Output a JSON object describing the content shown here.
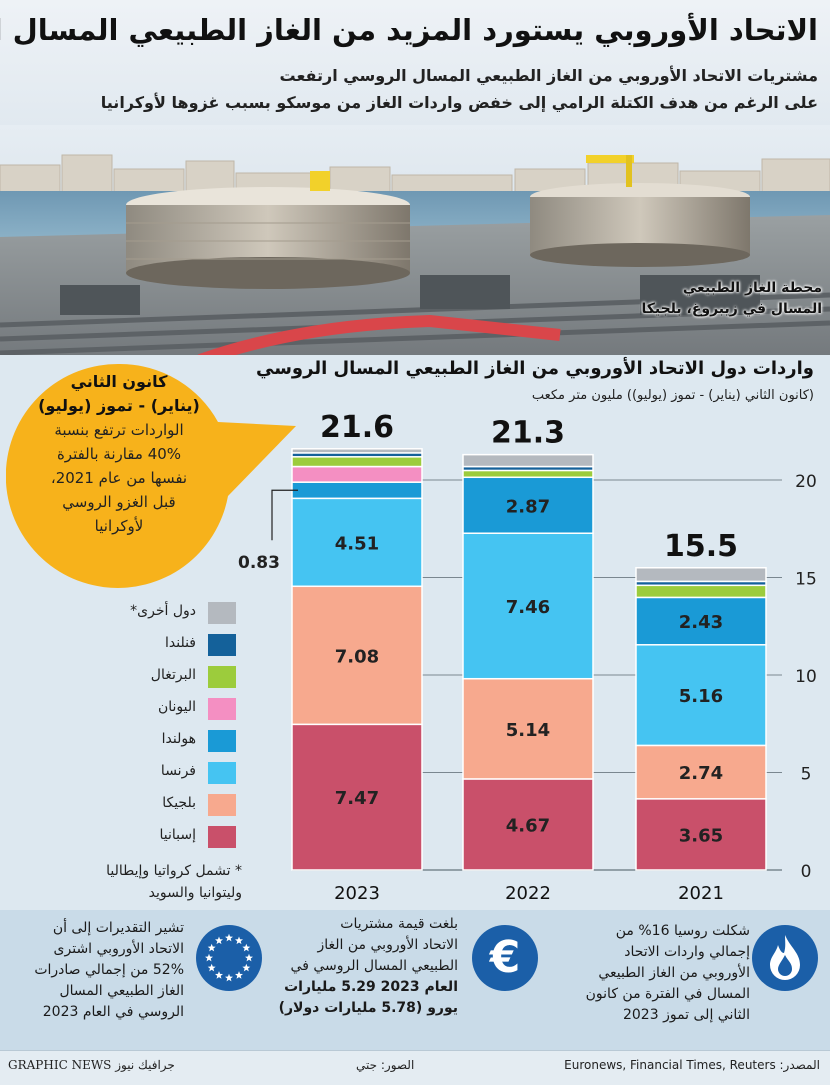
{
  "header": {
    "title": "الاتحاد الأوروبي يستورد المزيد من الغاز الطبيعي المسال الروسي",
    "subtitle_line1": "مشتريات الاتحاد الأوروبي من الغاز الطبيعي المسال الروسي ارتفعت",
    "subtitle_line2": "على الرغم من هدف الكتلة الرامي إلى خفض واردات الغاز من موسكو بسبب غزوها لأوكرانيا"
  },
  "photo": {
    "caption_line1": "محطة الغاز الطبيعي",
    "caption_line2": "المسال في زيبروغ، بلجيكا"
  },
  "callout": {
    "heading_line1": "كانون الثاني",
    "heading_line2": "(يناير) - تموز (يوليو)",
    "body_line1": "الواردات ترتفع بنسبة",
    "body_line2": "40% مقارنة بالفترة",
    "body_line3": "نفسها من عام 2021،",
    "body_line4": "قبل الغزو الروسي",
    "body_line5": "لأوكرانيا",
    "color": "#f7b21b"
  },
  "chart_data": {
    "type": "bar",
    "stacked": true,
    "title": "واردات دول الاتحاد الأوروبي من الغاز الطبيعي المسال الروسي",
    "subtitle": "(كانون الثاني (يناير) - تموز (يوليو)) مليون متر مكعب",
    "categories": [
      "2023",
      "2022",
      "2021"
    ],
    "totals": [
      21.6,
      21.3,
      15.5
    ],
    "total_labels": [
      "21.6",
      "21.3",
      "15.5"
    ],
    "ylim": [
      0,
      22.5
    ],
    "y_ticks": [
      0,
      5,
      10,
      15,
      20
    ],
    "y_tick_labels": [
      "0",
      "5",
      "10",
      "15",
      "20"
    ],
    "grid": true,
    "series": [
      {
        "name": "إسبانيا",
        "color": "#c9506a",
        "values": [
          7.47,
          4.67,
          3.65
        ],
        "labels": [
          "7.47",
          "4.67",
          "3.65"
        ]
      },
      {
        "name": "بلجيكا",
        "color": "#f7a98e",
        "values": [
          7.08,
          5.14,
          2.74
        ],
        "labels": [
          "7.08",
          "5.14",
          "2.74"
        ]
      },
      {
        "name": "فرنسا",
        "color": "#45c4f2",
        "values": [
          4.51,
          7.46,
          5.16
        ],
        "labels": [
          "4.51",
          "7.46",
          "5.16"
        ]
      },
      {
        "name": "هولندا",
        "color": "#1a9ad6",
        "values": [
          0.83,
          2.87,
          2.43
        ],
        "labels": [
          "0.83",
          "2.87",
          "2.43"
        ]
      },
      {
        "name": "اليونان",
        "color": "#f48fc2",
        "values": [
          0.8,
          0,
          0
        ],
        "labels": [
          "",
          "",
          ""
        ]
      },
      {
        "name": "البرتغال",
        "color": "#9ccc3c",
        "values": [
          0.5,
          0.35,
          0.62
        ],
        "labels": [
          "",
          "",
          ""
        ]
      },
      {
        "name": "فنلندا",
        "color": "#14619a",
        "values": [
          0.2,
          0.2,
          0.2
        ],
        "labels": [
          "",
          "",
          ""
        ]
      },
      {
        "name": "دول أخرى*",
        "color": "#b4b9bf",
        "values": [
          0.21,
          0.61,
          0.7
        ],
        "labels": [
          "",
          "",
          ""
        ]
      }
    ]
  },
  "legend_note_line1": "* تشمل كرواتيا وإيطاليا",
  "legend_note_line2": "وليتوانيا والسويد",
  "facts": {
    "fact_right": [
      "شكلت روسيا 16% من",
      "إجمالي واردات الاتحاد",
      "الأوروبي من الغاز الطبيعي",
      "المسال في الفترة من كانون",
      "الثاني إلى تموز 2023"
    ],
    "fact_middle": [
      "بلغت قيمة مشتريات",
      "الاتحاد الأوروبي من الغاز",
      "الطبيعي المسال الروسي في",
      "العام 2023 5.29 مليارات",
      "يورو (5.78 مليارات دولار)"
    ],
    "fact_left": [
      "تشير التقديرات إلى أن",
      "الاتحاد الأوروبي اشترى",
      "52% من إجمالي صادرات",
      "الغاز الطبيعي المسال",
      "الروسي في العام 2023"
    ],
    "icon_color": "#1b5fa8",
    "euro_symbol": "€"
  },
  "footer": {
    "source": "المصدر: Euronews, Financial Times, Reuters",
    "photo_credit": "الصور: جتي",
    "brand": "GRAPHIC NEWS جرافيك نيوز"
  }
}
